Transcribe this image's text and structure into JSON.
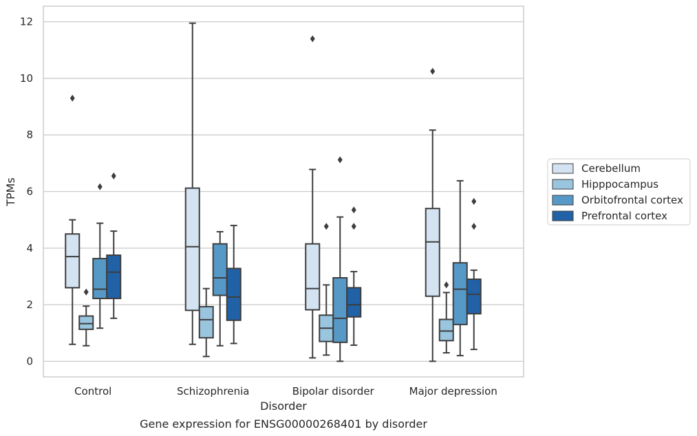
{
  "caption": "Gene expression for ENSG00000268401 by disorder",
  "chart_data": {
    "type": "boxplot",
    "xlabel": "Disorder",
    "ylabel": "TPMs",
    "ylim": [
      -0.55,
      12.55
    ],
    "yticks": [
      0,
      2,
      4,
      6,
      8,
      10,
      12
    ],
    "grid": "horizontal",
    "legend_position": "right",
    "categories": [
      "Control",
      "Schizophrenia",
      "Bipolar disorder",
      "Major depression"
    ],
    "series": [
      {
        "name": "Cerebellum",
        "color": "#d3e3f1",
        "boxes": [
          {
            "whislo": 0.6,
            "q1": 2.6,
            "med": 3.7,
            "q3": 4.5,
            "whishi": 5.0,
            "fliers": [
              9.3
            ]
          },
          {
            "whislo": 0.6,
            "q1": 1.8,
            "med": 4.05,
            "q3": 6.12,
            "whishi": 11.95,
            "fliers": []
          },
          {
            "whislo": 0.12,
            "q1": 1.82,
            "med": 2.57,
            "q3": 4.15,
            "whishi": 6.78,
            "fliers": [
              11.4
            ]
          },
          {
            "whislo": 0.0,
            "q1": 2.3,
            "med": 4.22,
            "q3": 5.4,
            "whishi": 8.17,
            "fliers": [
              10.25
            ]
          }
        ]
      },
      {
        "name": "Hipppocampus",
        "color": "#9ac5df",
        "boxes": [
          {
            "whislo": 0.55,
            "q1": 1.13,
            "med": 1.33,
            "q3": 1.6,
            "whishi": 1.95,
            "fliers": [
              2.45
            ]
          },
          {
            "whislo": 0.17,
            "q1": 0.83,
            "med": 1.47,
            "q3": 1.93,
            "whishi": 2.57,
            "fliers": []
          },
          {
            "whislo": 0.22,
            "q1": 0.7,
            "med": 1.17,
            "q3": 1.63,
            "whishi": 2.7,
            "fliers": [
              4.77
            ]
          },
          {
            "whislo": 0.3,
            "q1": 0.73,
            "med": 1.07,
            "q3": 1.48,
            "whishi": 2.43,
            "fliers": [
              2.7
            ]
          }
        ]
      },
      {
        "name": "Orbitofrontal cortex",
        "color": "#5699c6",
        "boxes": [
          {
            "whislo": 1.17,
            "q1": 2.22,
            "med": 2.55,
            "q3": 3.63,
            "whishi": 4.88,
            "fliers": [
              6.17
            ]
          },
          {
            "whislo": 0.55,
            "q1": 2.33,
            "med": 2.95,
            "q3": 4.15,
            "whishi": 4.58,
            "fliers": []
          },
          {
            "whislo": 0.0,
            "q1": 0.67,
            "med": 1.52,
            "q3": 2.95,
            "whishi": 5.1,
            "fliers": [
              7.12
            ]
          },
          {
            "whislo": 0.2,
            "q1": 1.3,
            "med": 2.55,
            "q3": 3.48,
            "whishi": 6.38,
            "fliers": []
          }
        ]
      },
      {
        "name": "Prefrontal cortex",
        "color": "#2161a6",
        "boxes": [
          {
            "whislo": 1.52,
            "q1": 2.22,
            "med": 3.15,
            "q3": 3.75,
            "whishi": 4.6,
            "fliers": [
              6.55
            ]
          },
          {
            "whislo": 0.63,
            "q1": 1.45,
            "med": 2.27,
            "q3": 3.28,
            "whishi": 4.8,
            "fliers": []
          },
          {
            "whislo": 0.57,
            "q1": 1.57,
            "med": 2.0,
            "q3": 2.6,
            "whishi": 3.17,
            "fliers": [
              4.77,
              5.35
            ]
          },
          {
            "whislo": 0.42,
            "q1": 1.68,
            "med": 2.37,
            "q3": 2.9,
            "whishi": 3.22,
            "fliers": [
              4.77,
              5.65
            ]
          }
        ]
      }
    ]
  }
}
